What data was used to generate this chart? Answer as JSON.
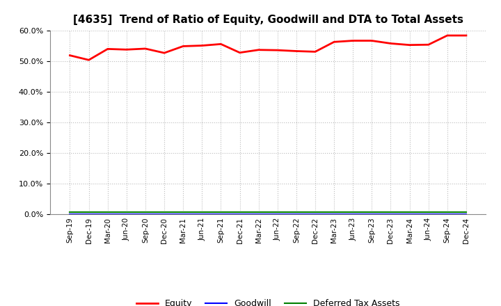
{
  "title": "[4635]  Trend of Ratio of Equity, Goodwill and DTA to Total Assets",
  "x_labels": [
    "Sep-19",
    "Dec-19",
    "Mar-20",
    "Jun-20",
    "Sep-20",
    "Dec-20",
    "Mar-21",
    "Jun-21",
    "Sep-21",
    "Dec-21",
    "Mar-22",
    "Jun-22",
    "Sep-22",
    "Dec-22",
    "Mar-23",
    "Jun-23",
    "Sep-23",
    "Dec-23",
    "Mar-24",
    "Jun-24",
    "Sep-24",
    "Dec-24"
  ],
  "equity": [
    0.519,
    0.504,
    0.54,
    0.538,
    0.541,
    0.527,
    0.549,
    0.551,
    0.556,
    0.528,
    0.537,
    0.536,
    0.533,
    0.531,
    0.563,
    0.567,
    0.567,
    0.558,
    0.553,
    0.554,
    0.584,
    0.584
  ],
  "goodwill": [
    0.001,
    0.001,
    0.001,
    0.001,
    0.001,
    0.001,
    0.001,
    0.001,
    0.001,
    0.001,
    0.001,
    0.001,
    0.001,
    0.001,
    0.001,
    0.001,
    0.001,
    0.001,
    0.001,
    0.001,
    0.001,
    0.001
  ],
  "dta": [
    0.007,
    0.007,
    0.007,
    0.007,
    0.007,
    0.007,
    0.007,
    0.007,
    0.007,
    0.007,
    0.007,
    0.007,
    0.007,
    0.007,
    0.007,
    0.007,
    0.007,
    0.007,
    0.007,
    0.007,
    0.007,
    0.007
  ],
  "equity_color": "#ff0000",
  "goodwill_color": "#0000ff",
  "dta_color": "#008000",
  "ylim": [
    0.0,
    0.6
  ],
  "yticks": [
    0.0,
    0.1,
    0.2,
    0.3,
    0.4,
    0.5,
    0.6
  ],
  "background_color": "#ffffff",
  "grid_color": "#bbbbbb",
  "title_fontsize": 11,
  "legend_labels": [
    "Equity",
    "Goodwill",
    "Deferred Tax Assets"
  ]
}
